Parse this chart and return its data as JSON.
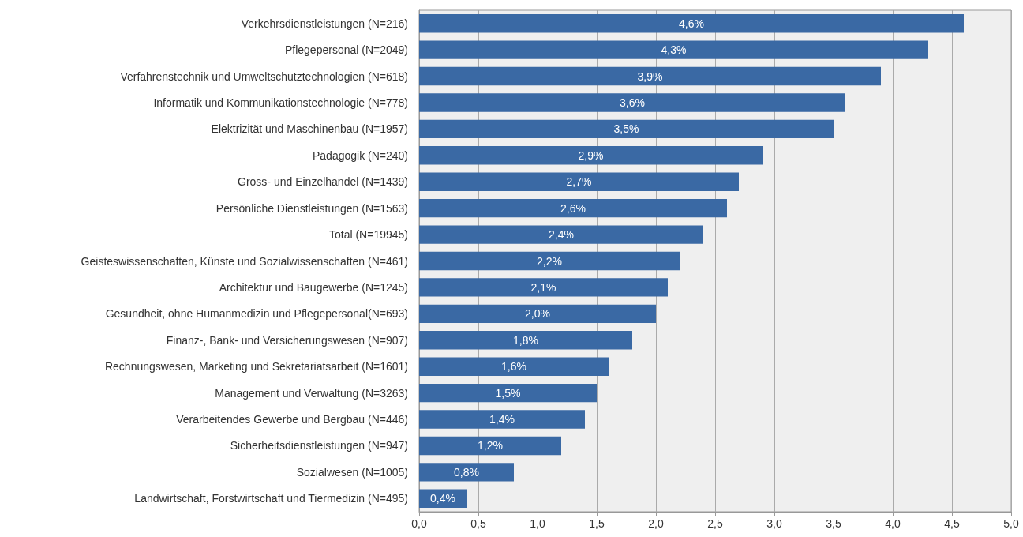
{
  "chart_data": {
    "type": "bar",
    "orientation": "horizontal",
    "categories": [
      "Verkehrsdienstleistungen (N=216)",
      "Pflegepersonal (N=2049)",
      "Verfahrenstechnik und Umweltschutztechnologien (N=618)",
      "Informatik und Kommunikationstechnologie (N=778)",
      "Elektrizität und Maschinenbau (N=1957)",
      "Pädagogik (N=240)",
      "Gross- und Einzelhandel (N=1439)",
      "Persönliche Dienstleistungen (N=1563)",
      "Total (N=19945)",
      "Geisteswissenschaften, Künste und Sozialwissenschaften (N=461)",
      "Architektur und Baugewerbe (N=1245)",
      "Gesundheit, ohne Humanmedizin und Pflegepersonal(N=693)",
      "Finanz-, Bank- und Versicherungswesen (N=907)",
      "Rechnungswesen, Marketing und Sekretariatsarbeit (N=1601)",
      "Management und Verwaltung (N=3263)",
      "Verarbeitendes Gewerbe und Bergbau (N=446)",
      "Sicherheitsdienstleistungen (N=947)",
      "Sozialwesen (N=1005)",
      "Landwirtschaft, Forstwirtschaft und Tiermedizin (N=495)"
    ],
    "values": [
      4.6,
      4.3,
      3.9,
      3.6,
      3.5,
      2.9,
      2.7,
      2.6,
      2.4,
      2.2,
      2.1,
      2.0,
      1.8,
      1.6,
      1.5,
      1.4,
      1.2,
      0.8,
      0.4
    ],
    "value_labels": [
      "4,6%",
      "4,3%",
      "3,9%",
      "3,6%",
      "3,5%",
      "2,9%",
      "2,7%",
      "2,6%",
      "2,4%",
      "2,2%",
      "2,1%",
      "2,0%",
      "1,8%",
      "1,6%",
      "1,5%",
      "1,4%",
      "1,2%",
      "0,8%",
      "0,4%"
    ],
    "color": "#3a69a4",
    "xlim": [
      0,
      5
    ],
    "xticks": [
      {
        "value": 0,
        "label": "0,0"
      },
      {
        "value": 0.5,
        "label": "0,5"
      },
      {
        "value": 1,
        "label": "1,0"
      },
      {
        "value": 1.5,
        "label": "1,5"
      },
      {
        "value": 2,
        "label": "2,0"
      },
      {
        "value": 2.5,
        "label": "2,5"
      },
      {
        "value": 3,
        "label": "3,0"
      },
      {
        "value": 3.5,
        "label": "3,5"
      },
      {
        "value": 4,
        "label": "4,0"
      },
      {
        "value": 4.5,
        "label": "4,5"
      },
      {
        "value": 5,
        "label": "5,0"
      }
    ],
    "grid": "x"
  }
}
